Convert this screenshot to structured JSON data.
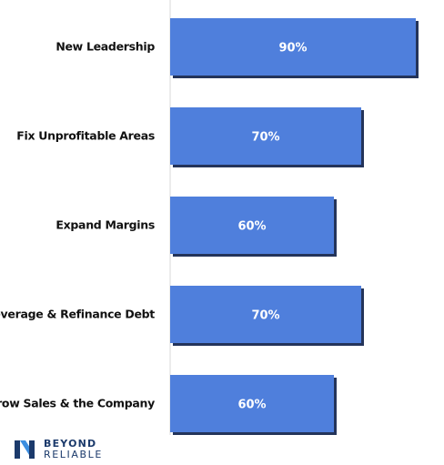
{
  "chart_data": {
    "type": "bar",
    "orientation": "horizontal",
    "categories": [
      "New Leadership",
      "Fix Unprofitable Areas",
      "Expand Margins",
      "Deleverage & Refinance Debt",
      "Grow Sales & the Company"
    ],
    "values": [
      90,
      70,
      60,
      70,
      60
    ],
    "data_labels": [
      "90%",
      "70%",
      "60%",
      "70%",
      "60%"
    ],
    "xlim": [
      0,
      100
    ],
    "unit": "%",
    "bar_color": "#4f7fdc",
    "bar_shadow_color": "#24345a",
    "grid": false,
    "legend": "none"
  },
  "logo": {
    "line1": "BEYOND",
    "line2": "RELIABLE",
    "colors": [
      "#1b3a6b",
      "#3c8ee0"
    ]
  }
}
